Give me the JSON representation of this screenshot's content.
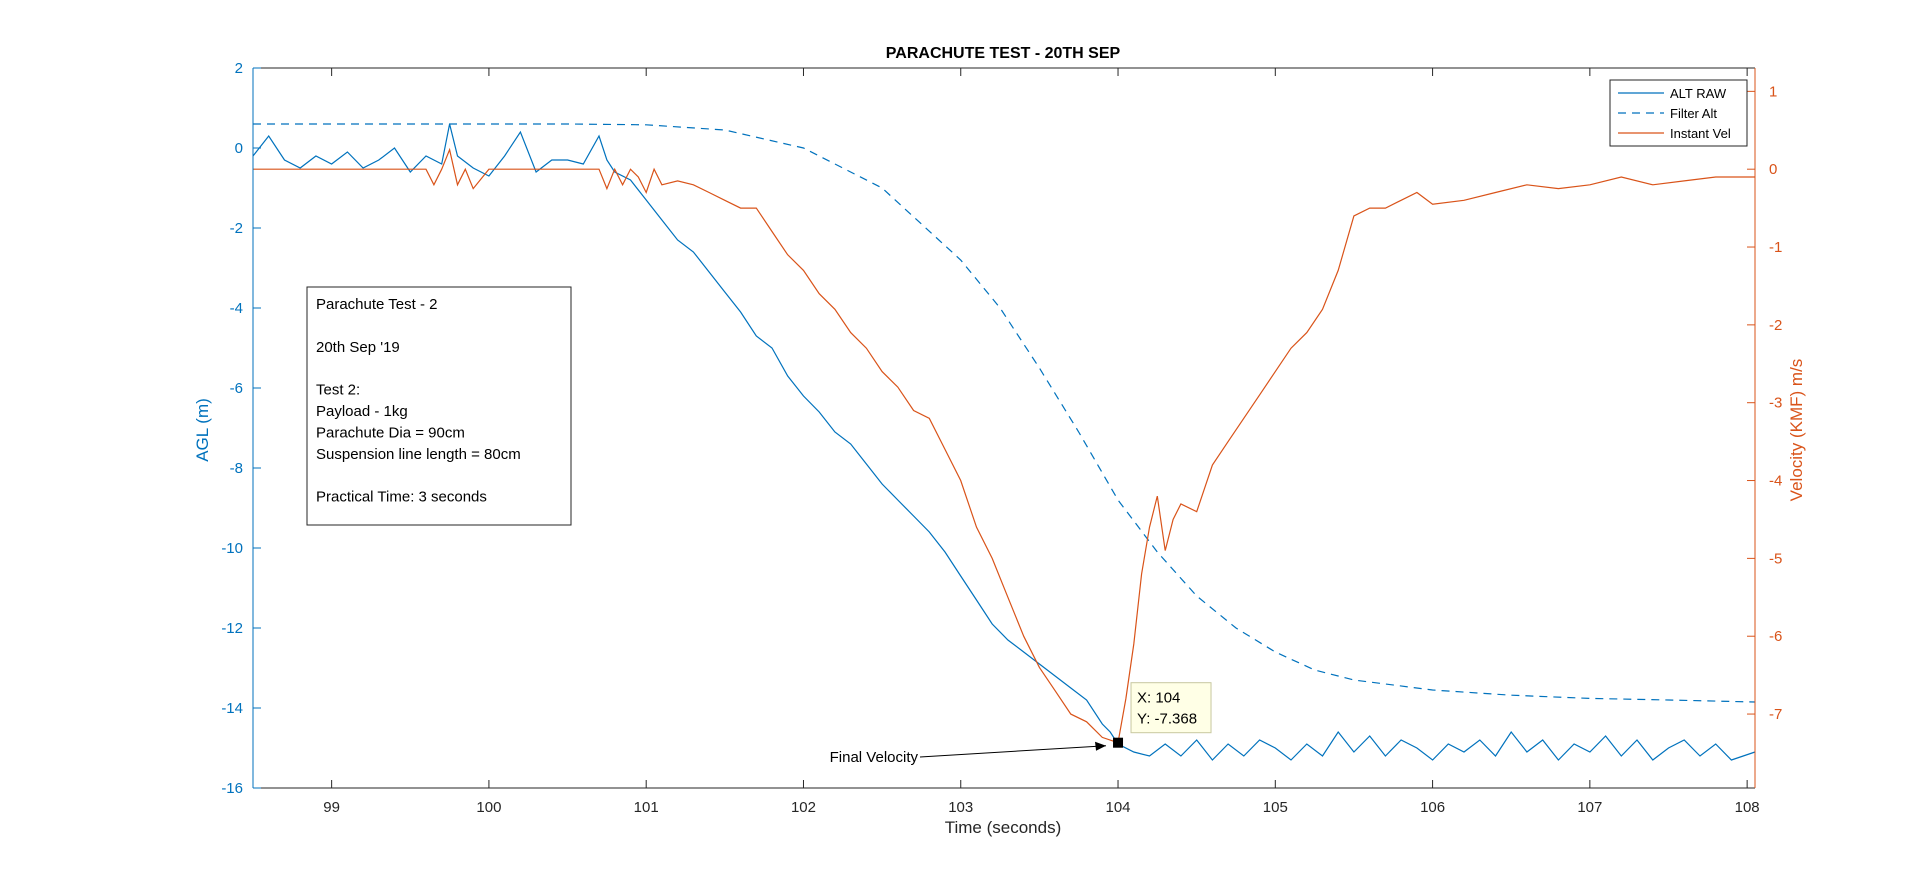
{
  "chart_data": {
    "type": "line",
    "title": "PARACHUTE TEST - 20TH SEP",
    "xlabel": "Time (seconds)",
    "ylabel_left": "AGL (m)",
    "ylabel_right": "Velocity (KMF) m/s",
    "xlim": [
      98.5,
      108.05
    ],
    "ylim_left": [
      -16,
      2
    ],
    "ylim_right": [
      -7.95,
      1.3
    ],
    "x_ticks": [
      "99",
      "100",
      "101",
      "102",
      "103",
      "104",
      "105",
      "106",
      "107",
      "108"
    ],
    "y_ticks_left": [
      "2",
      "0",
      "-2",
      "-4",
      "-6",
      "-8",
      "-10",
      "-12",
      "-14",
      "-16"
    ],
    "y_ticks_right": [
      "1",
      "0",
      "-1",
      "-2",
      "-3",
      "-4",
      "-5",
      "-6",
      "-7"
    ],
    "grid": false,
    "legend": {
      "position": "top-right",
      "entries": [
        "ALT RAW",
        "Filter Alt",
        "Instant Vel"
      ]
    },
    "colors": {
      "blue": "#0072BD",
      "orange": "#D95319"
    },
    "series": [
      {
        "name": "ALT RAW",
        "axis": "left",
        "style": "solid",
        "x": [
          98.5,
          98.6,
          98.7,
          98.8,
          98.9,
          99.0,
          99.1,
          99.2,
          99.3,
          99.4,
          99.5,
          99.6,
          99.7,
          99.75,
          99.8,
          99.9,
          100.0,
          100.1,
          100.2,
          100.3,
          100.4,
          100.5,
          100.6,
          100.7,
          100.75,
          100.8,
          100.9,
          101.0,
          101.1,
          101.2,
          101.3,
          101.4,
          101.5,
          101.6,
          101.7,
          101.8,
          101.9,
          102.0,
          102.1,
          102.2,
          102.3,
          102.4,
          102.5,
          102.6,
          102.7,
          102.8,
          102.9,
          103.0,
          103.1,
          103.2,
          103.3,
          103.4,
          103.5,
          103.6,
          103.7,
          103.8,
          103.9,
          103.95,
          104.0,
          104.1,
          104.2,
          104.3,
          104.4,
          104.5,
          104.6,
          104.7,
          104.8,
          104.9,
          105.0,
          105.1,
          105.2,
          105.3,
          105.4,
          105.5,
          105.6,
          105.7,
          105.8,
          105.9,
          106.0,
          106.1,
          106.2,
          106.3,
          106.4,
          106.5,
          106.6,
          106.7,
          106.8,
          106.9,
          107.0,
          107.1,
          107.2,
          107.3,
          107.4,
          107.5,
          107.6,
          107.7,
          107.8,
          107.9,
          108.05
        ],
        "y": [
          -0.2,
          0.3,
          -0.3,
          -0.5,
          -0.2,
          -0.4,
          -0.1,
          -0.5,
          -0.3,
          0.0,
          -0.6,
          -0.2,
          -0.4,
          0.6,
          -0.2,
          -0.5,
          -0.7,
          -0.2,
          0.4,
          -0.6,
          -0.3,
          -0.3,
          -0.4,
          0.3,
          -0.3,
          -0.6,
          -0.8,
          -1.3,
          -1.8,
          -2.3,
          -2.6,
          -3.1,
          -3.6,
          -4.1,
          -4.7,
          -5.0,
          -5.7,
          -6.2,
          -6.6,
          -7.1,
          -7.4,
          -7.9,
          -8.4,
          -8.8,
          -9.2,
          -9.6,
          -10.1,
          -10.7,
          -11.3,
          -11.9,
          -12.3,
          -12.6,
          -12.9,
          -13.2,
          -13.5,
          -13.8,
          -14.4,
          -14.6,
          -14.9,
          -15.1,
          -15.2,
          -14.9,
          -15.2,
          -14.8,
          -15.3,
          -14.9,
          -15.2,
          -14.8,
          -15.0,
          -15.3,
          -14.9,
          -15.2,
          -14.6,
          -15.1,
          -14.7,
          -15.2,
          -14.8,
          -15.0,
          -15.3,
          -14.9,
          -15.1,
          -14.8,
          -15.2,
          -14.6,
          -15.1,
          -14.8,
          -15.3,
          -14.9,
          -15.1,
          -14.7,
          -15.2,
          -14.8,
          -15.3,
          -15.0,
          -14.8,
          -15.2,
          -14.9,
          -15.3,
          -15.1
        ]
      },
      {
        "name": "Filter Alt",
        "axis": "left",
        "style": "dashed",
        "x": [
          98.5,
          99.0,
          99.5,
          100.0,
          100.5,
          101.0,
          101.5,
          102.0,
          102.5,
          103.0,
          103.25,
          103.5,
          103.75,
          104.0,
          104.25,
          104.5,
          104.75,
          105.0,
          105.25,
          105.5,
          106.0,
          106.5,
          107.0,
          107.5,
          108.05
        ],
        "y": [
          0.6,
          0.6,
          0.6,
          0.6,
          0.6,
          0.58,
          0.45,
          0.0,
          -1.0,
          -2.8,
          -4.0,
          -5.5,
          -7.1,
          -8.8,
          -10.1,
          -11.2,
          -12.0,
          -12.6,
          -13.05,
          -13.3,
          -13.55,
          -13.68,
          -13.76,
          -13.8,
          -13.85
        ]
      },
      {
        "name": "Instant Vel",
        "axis": "right",
        "style": "solid",
        "x": [
          98.5,
          99.0,
          99.5,
          99.6,
          99.65,
          99.7,
          99.75,
          99.8,
          99.85,
          99.9,
          100.0,
          100.5,
          100.7,
          100.75,
          100.8,
          100.85,
          100.9,
          100.95,
          101.0,
          101.05,
          101.1,
          101.2,
          101.3,
          101.4,
          101.5,
          101.6,
          101.7,
          101.8,
          101.9,
          102.0,
          102.1,
          102.2,
          102.3,
          102.4,
          102.5,
          102.6,
          102.7,
          102.8,
          102.9,
          103.0,
          103.1,
          103.2,
          103.3,
          103.4,
          103.5,
          103.6,
          103.7,
          103.8,
          103.9,
          104.0,
          104.05,
          104.1,
          104.15,
          104.2,
          104.25,
          104.3,
          104.35,
          104.4,
          104.5,
          104.6,
          104.7,
          104.8,
          104.9,
          105.0,
          105.1,
          105.2,
          105.3,
          105.4,
          105.5,
          105.6,
          105.7,
          105.8,
          105.9,
          106.0,
          106.2,
          106.4,
          106.6,
          106.8,
          107.0,
          107.2,
          107.4,
          107.6,
          107.8,
          108.05
        ],
        "y": [
          0.0,
          0.0,
          0.0,
          0.0,
          -0.2,
          0.0,
          0.25,
          -0.2,
          0.0,
          -0.25,
          0.0,
          0.0,
          0.0,
          -0.25,
          0.0,
          -0.2,
          0.0,
          -0.1,
          -0.3,
          0.0,
          -0.2,
          -0.15,
          -0.2,
          -0.3,
          -0.4,
          -0.5,
          -0.5,
          -0.8,
          -1.1,
          -1.3,
          -1.6,
          -1.8,
          -2.1,
          -2.3,
          -2.6,
          -2.8,
          -3.1,
          -3.2,
          -3.6,
          -4.0,
          -4.6,
          -5.0,
          -5.5,
          -6.0,
          -6.4,
          -6.7,
          -7.0,
          -7.1,
          -7.3,
          -7.368,
          -6.8,
          -6.1,
          -5.2,
          -4.6,
          -4.2,
          -4.9,
          -4.5,
          -4.3,
          -4.4,
          -3.8,
          -3.5,
          -3.2,
          -2.9,
          -2.6,
          -2.3,
          -2.1,
          -1.8,
          -1.3,
          -0.6,
          -0.5,
          -0.5,
          -0.4,
          -0.3,
          -0.45,
          -0.4,
          -0.3,
          -0.2,
          -0.25,
          -0.2,
          -0.1,
          -0.2,
          -0.15,
          -0.1,
          -0.1
        ]
      }
    ],
    "annotations": {
      "textbox_lines": [
        "Parachute Test - 2",
        "",
        "20th Sep '19",
        "",
        "Test 2:",
        "Payload - 1kg",
        "Parachute Dia = 90cm",
        "Suspension line length = 80cm",
        "",
        "Practical Time: 3 seconds"
      ],
      "arrow_label": "Final Velocity",
      "datatip": {
        "x": 104,
        "y": -7.368,
        "line1": "X: 104",
        "line2": "Y: -7.368"
      }
    }
  }
}
